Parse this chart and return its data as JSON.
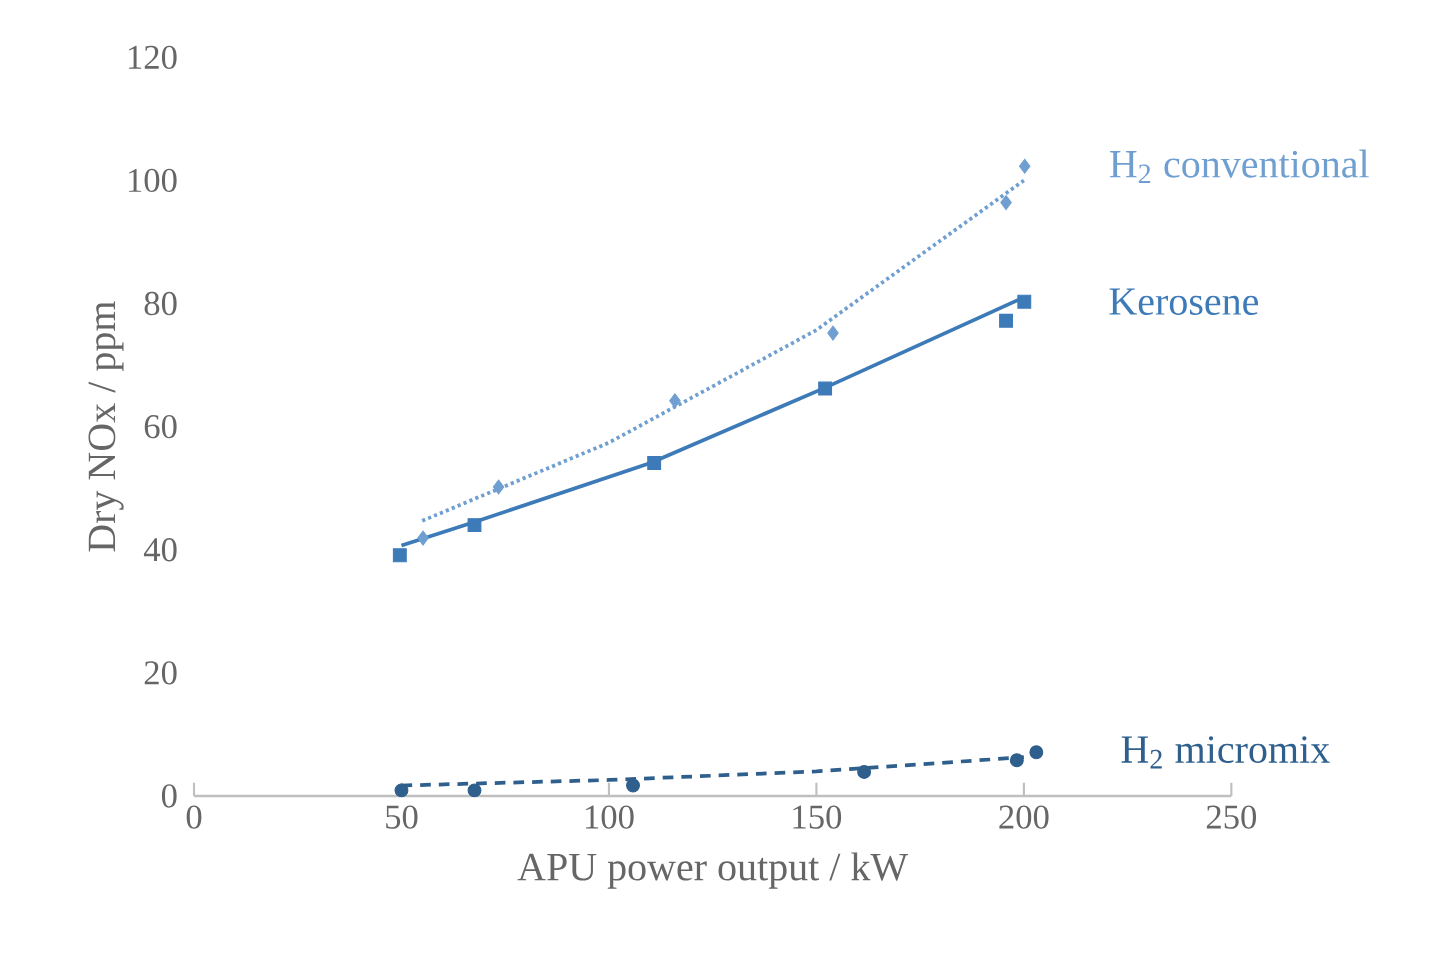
{
  "chart_data": {
    "type": "scatter",
    "xlabel": "APU power output / kW",
    "ylabel": "Dry NOx / ppm",
    "xlim": [
      0,
      250
    ],
    "ylim": [
      0,
      120
    ],
    "xticks": [
      0,
      50,
      100,
      150,
      200,
      250
    ],
    "yticks": [
      0,
      20,
      40,
      60,
      80,
      100,
      120
    ],
    "grid": false,
    "series": [
      {
        "name": "H$_{2}$ conventional",
        "marker": "diamond",
        "color": "#6f9fd0",
        "x": [
          55.2,
          73.4,
          115.9,
          154.0,
          195.7,
          200.2
        ],
        "values": [
          41.9,
          50.2,
          64.2,
          75.2,
          96.4,
          102.3
        ]
      },
      {
        "type": "line",
        "line_style": "dotted",
        "marker": "none",
        "color": "#6f9fd0",
        "x": [
          55,
          100,
          150,
          200
        ],
        "values": [
          44.7,
          57.4,
          75.7,
          100
        ]
      },
      {
        "name": "Kerosene",
        "marker": "square",
        "color": "#3d7ab8",
        "x": [
          49.6,
          67.6,
          110.9,
          152.1,
          195.7,
          200.1
        ],
        "values": [
          39.1,
          44.0,
          54.1,
          66.2,
          77.2,
          80.3
        ]
      },
      {
        "type": "line",
        "line_style": "solid",
        "marker": "none",
        "color": "#3d7ab8",
        "x": [
          50,
          67.6,
          110,
          152,
          200
        ],
        "values": [
          40.7,
          44.5,
          54.1,
          66.3,
          81
        ]
      },
      {
        "name": "H$_{2}$ micromix",
        "marker": "circle",
        "color": "#2f5f8c",
        "x": [
          50,
          67.6,
          105.8,
          161.5,
          198.3,
          203
        ],
        "values": [
          0.9,
          0.9,
          1.7,
          3.9,
          5.8,
          7.1
        ]
      },
      {
        "type": "line",
        "line_style": "dashed",
        "marker": "none",
        "color": "#2f5f8c",
        "x": [
          50,
          100,
          150,
          200
        ],
        "values": [
          1.7,
          2.6,
          4.0,
          6.3
        ]
      }
    ]
  }
}
